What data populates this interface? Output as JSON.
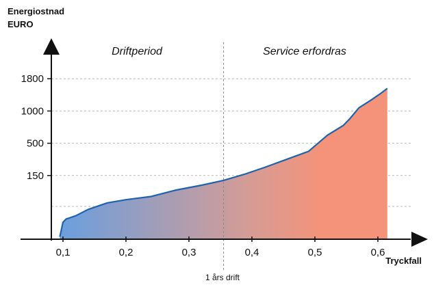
{
  "chart_data": {
    "type": "area",
    "ylabel_lines": [
      "Energiostnad",
      "EURO"
    ],
    "xlabel": "Tryckfall",
    "x_ticks": [
      {
        "value": 0.1,
        "label": "0,1"
      },
      {
        "value": 0.2,
        "label": "0,2"
      },
      {
        "value": 0.3,
        "label": "0,3"
      },
      {
        "value": 0.4,
        "label": "0,4"
      },
      {
        "value": 0.5,
        "label": "0,5"
      },
      {
        "value": 0.6,
        "label": "0,6"
      }
    ],
    "y_ticks": [
      {
        "value": 1,
        "label": "150"
      },
      {
        "value": 2,
        "label": "500"
      },
      {
        "value": 3,
        "label": "1000"
      },
      {
        "value": 4,
        "label": "1800"
      }
    ],
    "xlim": [
      0.08,
      0.62
    ],
    "ylim": [
      -0.9,
      4
    ],
    "x": [
      0.095,
      0.1,
      0.105,
      0.12,
      0.14,
      0.17,
      0.2,
      0.24,
      0.28,
      0.32,
      0.355,
      0.39,
      0.42,
      0.455,
      0.49,
      0.505,
      0.52,
      0.545,
      0.555,
      0.57,
      0.59,
      0.605,
      0.615
    ],
    "y": [
      -0.9,
      -0.45,
      -0.35,
      -0.25,
      -0.05,
      0.15,
      0.25,
      0.35,
      0.55,
      0.7,
      0.85,
      1.05,
      1.25,
      1.5,
      1.75,
      2.0,
      2.25,
      2.55,
      2.75,
      3.1,
      3.35,
      3.55,
      3.7
    ],
    "divider": {
      "x": 0.355,
      "label": "1 års drift"
    },
    "regions": [
      {
        "label": "Driftperiod",
        "color": "#6f9fdb"
      },
      {
        "label": "Service erfordras",
        "color": "#f4937a"
      }
    ],
    "line_color": "#1e63ad",
    "grid": "horizontal-dashed",
    "legend": "none"
  }
}
